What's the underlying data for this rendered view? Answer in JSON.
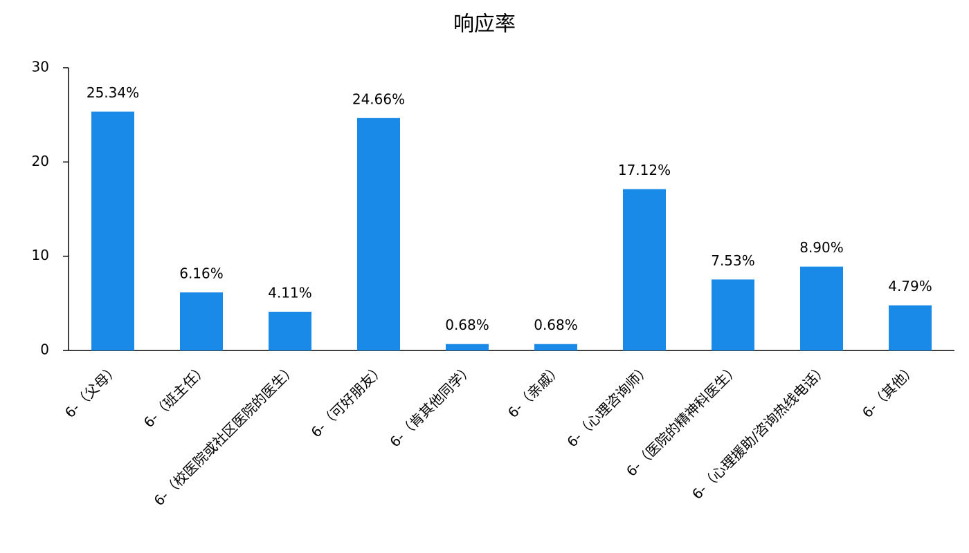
{
  "chart_data": {
    "type": "bar",
    "title": "响应率",
    "categories": [
      "6-（父母）",
      "6-（班主任）",
      "6-（校医院或社区医院的医生）",
      "6-（可好朋友）",
      "6-（肯其他同学）",
      "6-（亲戚）",
      "6-（心理咨询师）",
      "6-（医院的精神科医生）",
      "6-（心理援助/咨询热线电话）",
      "6-（其他）"
    ],
    "values": [
      25.34,
      6.16,
      4.11,
      24.66,
      0.68,
      0.68,
      17.12,
      7.53,
      8.9,
      4.79
    ],
    "value_labels": [
      "25.34%",
      "6.16%",
      "4.11%",
      "24.66%",
      "0.68%",
      "0.68%",
      "17.12%",
      "7.53%",
      "8.90%",
      "4.79%"
    ],
    "color": "#1a8ae8",
    "ylim": [
      0,
      30
    ],
    "yticks": [
      0,
      10,
      20,
      30
    ],
    "grid": false
  }
}
